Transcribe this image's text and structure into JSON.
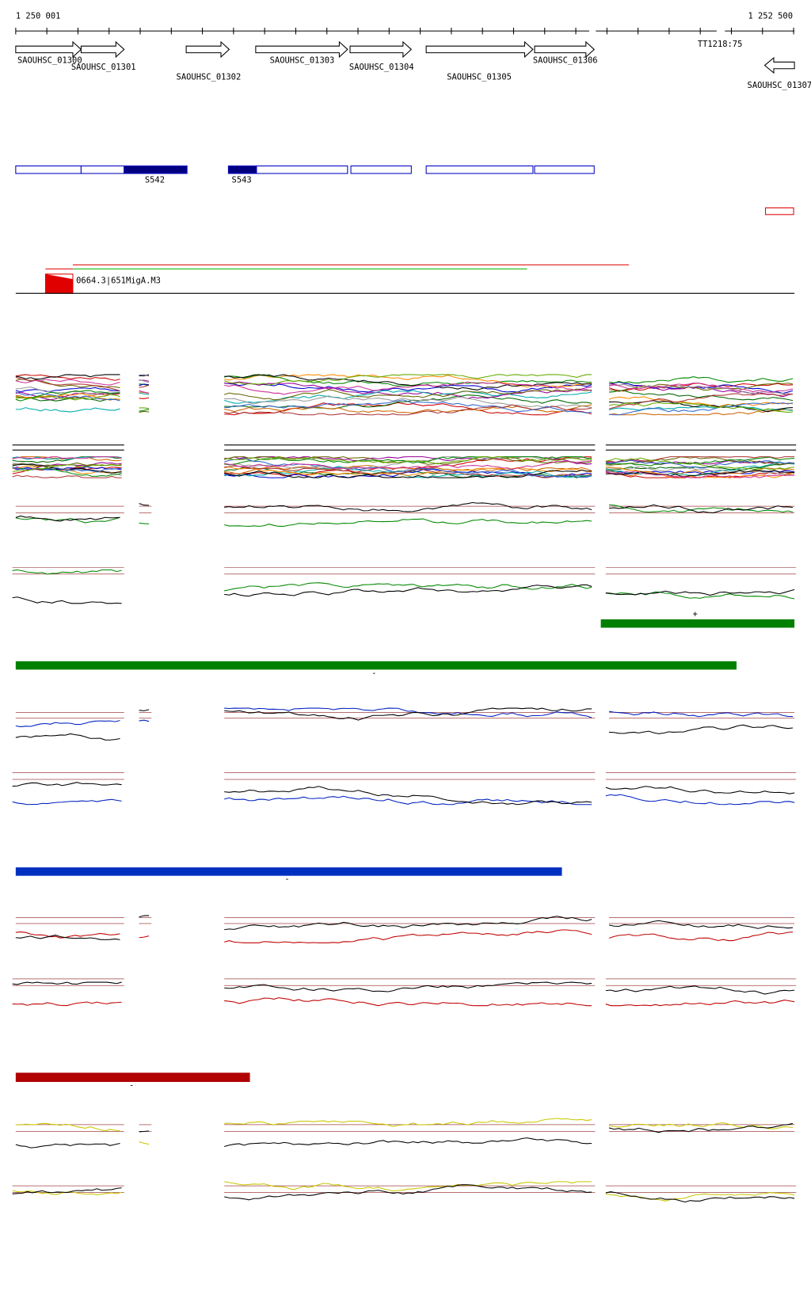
{
  "ruler": {
    "start": "1 250 001",
    "end": "1 252 500"
  },
  "genes": [
    {
      "label": "SAOUHSC_01300"
    },
    {
      "label": "SAOUHSC_01301"
    },
    {
      "label": "SAOUHSC_01302"
    },
    {
      "label": "SAOUHSC_01303"
    },
    {
      "label": "SAOUHSC_01304"
    },
    {
      "label": "SAOUHSC_01305"
    },
    {
      "label": "SAOUHSC_01306"
    },
    {
      "label": "SAOUHSC_01307"
    }
  ],
  "terminator": "TT1218:75",
  "regions": [
    "S542",
    "S543"
  ],
  "feature": "0664.3|651MigA.M3",
  "strands": [
    "+",
    "-",
    "-",
    "-"
  ]
}
